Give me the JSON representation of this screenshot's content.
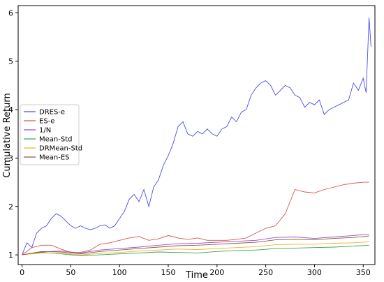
{
  "chart_data": {
    "type": "line",
    "xlabel": "Time",
    "ylabel": "Cumulative Return",
    "xlim": [
      -4,
      362
    ],
    "ylim": [
      0.8,
      6.15
    ],
    "xticks": [
      0,
      50,
      100,
      150,
      200,
      250,
      300,
      350
    ],
    "yticks": [
      1,
      2,
      3,
      4,
      5,
      6
    ],
    "grid": false,
    "legend_position": "center-left",
    "series": [
      {
        "name": "DRES-e",
        "color": "#4a4af0",
        "x": [
          0,
          5,
          10,
          15,
          20,
          25,
          30,
          35,
          40,
          45,
          50,
          55,
          60,
          65,
          70,
          75,
          80,
          85,
          90,
          95,
          100,
          105,
          110,
          115,
          120,
          125,
          130,
          135,
          140,
          145,
          150,
          155,
          160,
          165,
          170,
          175,
          180,
          185,
          190,
          195,
          200,
          205,
          210,
          215,
          220,
          225,
          230,
          235,
          240,
          245,
          250,
          255,
          260,
          265,
          270,
          275,
          280,
          285,
          290,
          295,
          300,
          305,
          310,
          315,
          320,
          325,
          330,
          335,
          340,
          345,
          350,
          353,
          356,
          358
        ],
        "values": [
          1.0,
          1.25,
          1.15,
          1.45,
          1.55,
          1.6,
          1.75,
          1.85,
          1.8,
          1.7,
          1.6,
          1.55,
          1.6,
          1.55,
          1.52,
          1.55,
          1.6,
          1.62,
          1.55,
          1.6,
          1.75,
          1.9,
          2.15,
          2.25,
          2.1,
          2.35,
          2.0,
          2.4,
          2.55,
          2.85,
          3.05,
          3.3,
          3.65,
          3.75,
          3.5,
          3.45,
          3.55,
          3.5,
          3.6,
          3.5,
          3.45,
          3.6,
          3.65,
          3.85,
          3.75,
          3.95,
          4.0,
          4.3,
          4.45,
          4.55,
          4.6,
          4.5,
          4.3,
          4.4,
          4.5,
          4.45,
          4.3,
          4.25,
          4.05,
          4.15,
          4.1,
          4.2,
          3.9,
          4.0,
          4.05,
          4.1,
          4.15,
          4.2,
          4.55,
          4.4,
          4.65,
          4.35,
          5.9,
          5.3
        ]
      },
      {
        "name": "ES-e",
        "color": "#d9534f",
        "x": [
          0,
          10,
          20,
          30,
          40,
          50,
          60,
          70,
          80,
          90,
          100,
          110,
          120,
          130,
          140,
          150,
          160,
          170,
          180,
          190,
          200,
          210,
          220,
          230,
          240,
          250,
          260,
          270,
          280,
          290,
          300,
          310,
          320,
          330,
          340,
          350,
          356
        ],
        "values": [
          1.0,
          1.15,
          1.2,
          1.2,
          1.12,
          1.05,
          1.05,
          1.1,
          1.22,
          1.25,
          1.3,
          1.35,
          1.38,
          1.3,
          1.33,
          1.4,
          1.35,
          1.32,
          1.35,
          1.3,
          1.3,
          1.3,
          1.32,
          1.35,
          1.45,
          1.55,
          1.6,
          1.85,
          2.35,
          2.3,
          2.28,
          2.35,
          2.4,
          2.45,
          2.48,
          2.5,
          2.5
        ]
      },
      {
        "name": "1/N",
        "color": "#9b4fc6",
        "x": [
          0,
          20,
          40,
          60,
          80,
          100,
          120,
          140,
          160,
          180,
          200,
          220,
          240,
          260,
          280,
          300,
          320,
          340,
          356
        ],
        "values": [
          1.0,
          1.06,
          1.08,
          1.04,
          1.1,
          1.13,
          1.16,
          1.2,
          1.23,
          1.24,
          1.26,
          1.28,
          1.3,
          1.36,
          1.37,
          1.34,
          1.37,
          1.4,
          1.43
        ]
      },
      {
        "name": "Mean-Std",
        "color": "#3fa34d",
        "x": [
          0,
          20,
          40,
          60,
          80,
          100,
          120,
          140,
          160,
          180,
          200,
          220,
          240,
          260,
          280,
          300,
          320,
          340,
          356
        ],
        "values": [
          1.0,
          1.05,
          1.02,
          0.98,
          1.0,
          1.02,
          1.04,
          1.06,
          1.05,
          1.04,
          1.07,
          1.09,
          1.1,
          1.13,
          1.14,
          1.15,
          1.16,
          1.18,
          1.2
        ]
      },
      {
        "name": "DRMean-Std",
        "color": "#f0b030",
        "x": [
          0,
          20,
          40,
          60,
          80,
          100,
          120,
          140,
          160,
          180,
          200,
          220,
          240,
          260,
          280,
          300,
          320,
          340,
          356
        ],
        "values": [
          1.0,
          1.04,
          1.03,
          1.0,
          1.03,
          1.05,
          1.08,
          1.1,
          1.12,
          1.11,
          1.13,
          1.15,
          1.17,
          1.21,
          1.22,
          1.22,
          1.24,
          1.25,
          1.27
        ]
      },
      {
        "name": "Mean-ES",
        "color": "#8c5a3c",
        "x": [
          0,
          20,
          40,
          60,
          80,
          100,
          120,
          140,
          160,
          180,
          200,
          220,
          240,
          260,
          280,
          300,
          320,
          340,
          356
        ],
        "values": [
          1.0,
          1.07,
          1.06,
          1.02,
          1.07,
          1.1,
          1.13,
          1.16,
          1.19,
          1.2,
          1.22,
          1.24,
          1.26,
          1.31,
          1.32,
          1.31,
          1.34,
          1.36,
          1.39
        ]
      }
    ]
  }
}
